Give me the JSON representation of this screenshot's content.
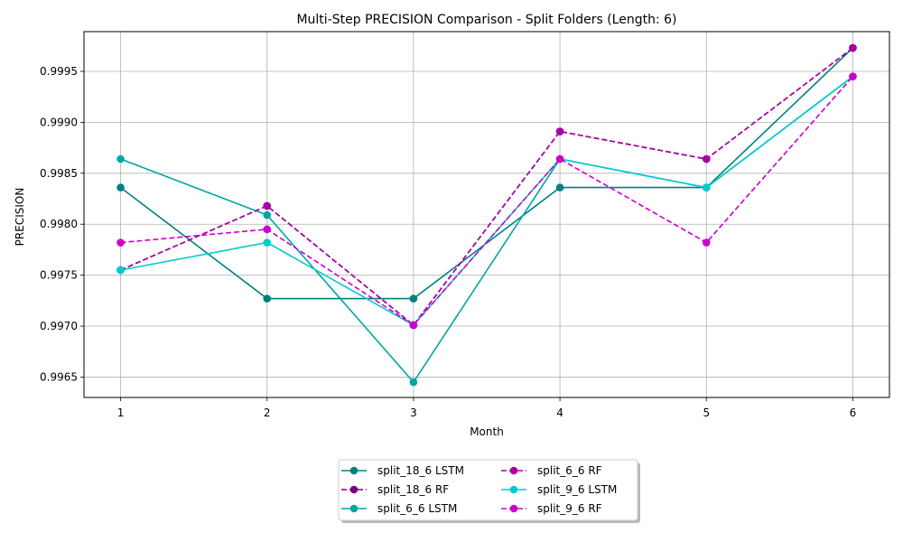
{
  "chart_data": {
    "type": "line",
    "title": "Multi-Step PRECISION Comparison - Split Folders (Length: 6)",
    "xlabel": "Month",
    "ylabel": "PRECISION",
    "x": [
      1,
      2,
      3,
      4,
      5,
      6
    ],
    "x_tick_labels": [
      "1",
      "2",
      "3",
      "4",
      "5",
      "6"
    ],
    "y_ticks": [
      0.9965,
      0.997,
      0.9975,
      0.998,
      0.9985,
      0.999,
      0.9995
    ],
    "y_tick_labels": [
      "0.9965",
      "0.9970",
      "0.9975",
      "0.9980",
      "0.9985",
      "0.9990",
      "0.9995"
    ],
    "xlim": [
      0.75,
      6.25
    ],
    "ylim": [
      0.9963,
      0.99989
    ],
    "grid": true,
    "legend_position": "bottom-center",
    "series": [
      {
        "name": "split_18_6 LSTM",
        "color": "#008080",
        "dash": false,
        "values": [
          0.99836,
          0.99727,
          0.99727,
          0.99836,
          0.99836,
          0.99973
        ]
      },
      {
        "name": "split_18_6 RF",
        "color": "#800080",
        "dash": true,
        "values": [
          0.99755,
          0.99818,
          0.99701,
          0.99891,
          0.99864,
          0.99973
        ]
      },
      {
        "name": "split_6_6 LSTM",
        "color": "#00a6a6",
        "dash": false,
        "values": [
          0.99864,
          0.99809,
          0.99645,
          0.99864,
          0.99836,
          0.99945
        ]
      },
      {
        "name": "split_6_6 RF",
        "color": "#a600a6",
        "dash": true,
        "values": [
          0.99755,
          0.99818,
          0.99701,
          0.99891,
          0.99864,
          0.99973
        ]
      },
      {
        "name": "split_9_6 LSTM",
        "color": "#00cccc",
        "dash": false,
        "values": [
          0.99755,
          0.99782,
          0.99701,
          0.99864,
          0.99836,
          0.99945
        ]
      },
      {
        "name": "split_9_6 RF",
        "color": "#cc00cc",
        "dash": true,
        "values": [
          0.99782,
          0.99795,
          0.99701,
          0.99864,
          0.99782,
          0.99945
        ]
      }
    ]
  }
}
